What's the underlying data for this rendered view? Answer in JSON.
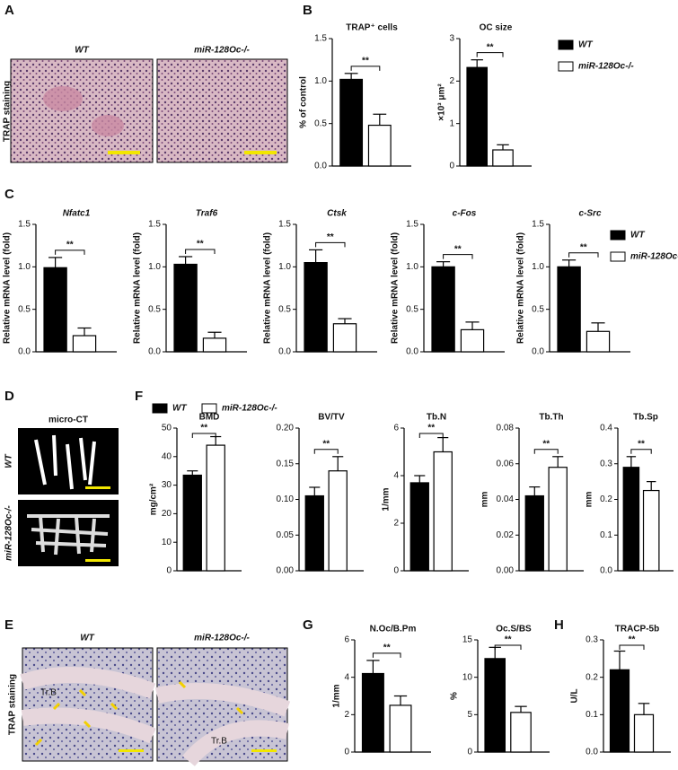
{
  "panel_letters": [
    "A",
    "B",
    "C",
    "D",
    "E",
    "F",
    "G",
    "H"
  ],
  "legend": [
    {
      "name": "WT",
      "color": "#000000"
    },
    {
      "name": "miR-128Oc-/-",
      "color": "#ffffff"
    }
  ],
  "images": {
    "A": {
      "columns": [
        "WT",
        "miR-128Oc-/-"
      ],
      "row_label": "TRAP staining"
    },
    "D": {
      "title": "micro-CT",
      "rows": [
        "WT",
        "miR-128Oc-/-"
      ]
    },
    "E": {
      "columns": [
        "WT",
        "miR-128Oc-/-"
      ],
      "row_label": "TRAP staining",
      "region_labels": [
        "Tr.B",
        "Tr.B"
      ]
    }
  },
  "chart_data": [
    {
      "type": "bar",
      "title": "TRAP⁺ cells",
      "ylabel": "% of control",
      "values": [
        1.02,
        0.48
      ],
      "errors": [
        0.07,
        0.13
      ],
      "ylim": [
        0,
        1.5
      ],
      "yticks": [
        {
          "value": 0,
          "label": "0.0"
        },
        0.5,
        {
          "value": 1,
          "label": "1.0"
        },
        1.5
      ],
      "annotation": "**"
    },
    {
      "type": "bar",
      "title": "OC size",
      "ylabel": "×10³ μm²",
      "values": [
        2.32,
        0.38
      ],
      "errors": [
        0.18,
        0.12
      ],
      "ylim": [
        0,
        3
      ],
      "yticks": [
        0,
        1,
        2,
        3
      ],
      "annotation": "**"
    },
    {
      "type": "bar",
      "title": "Nfatc1",
      "ylabel": "Relative mRNA level (fold)",
      "values": [
        0.99,
        0.19
      ],
      "errors": [
        0.12,
        0.09
      ],
      "ylim": [
        0,
        1.5
      ],
      "yticks": [
        {
          "value": 0,
          "label": "0.0"
        },
        0.5,
        {
          "value": 1,
          "label": "1.0"
        },
        1.5
      ],
      "annotation": "**"
    },
    {
      "type": "bar",
      "title": "Traf6",
      "ylabel": "Relative mRNA level (fold)",
      "values": [
        1.03,
        0.16
      ],
      "errors": [
        0.09,
        0.07
      ],
      "ylim": [
        0,
        1.5
      ],
      "yticks": [
        {
          "value": 0,
          "label": "0.0"
        },
        0.5,
        {
          "value": 1,
          "label": "1.0"
        },
        1.5
      ],
      "annotation": "**"
    },
    {
      "type": "bar",
      "title": "Ctsk",
      "ylabel": "Relative mRNA level (fold)",
      "values": [
        1.05,
        0.33
      ],
      "errors": [
        0.15,
        0.06
      ],
      "ylim": [
        0,
        1.5
      ],
      "yticks": [
        {
          "value": 0,
          "label": "0.0"
        },
        0.5,
        {
          "value": 1,
          "label": "1.0"
        },
        1.5
      ],
      "annotation": "**"
    },
    {
      "type": "bar",
      "title": "c-Fos",
      "ylabel": "Relative mRNA level (fold)",
      "values": [
        1.0,
        0.26
      ],
      "errors": [
        0.06,
        0.09
      ],
      "ylim": [
        0,
        1.5
      ],
      "yticks": [
        {
          "value": 0,
          "label": "0.0"
        },
        0.5,
        {
          "value": 1,
          "label": "1.0"
        },
        1.5
      ],
      "annotation": "**"
    },
    {
      "type": "bar",
      "title": "c-Src",
      "ylabel": "Relative mRNA level (fold)",
      "values": [
        1.0,
        0.24
      ],
      "errors": [
        0.08,
        0.1
      ],
      "ylim": [
        0,
        1.5
      ],
      "yticks": [
        {
          "value": 0,
          "label": "0.0"
        },
        0.5,
        {
          "value": 1,
          "label": "1.0"
        },
        1.5
      ],
      "annotation": "**"
    },
    {
      "type": "bar",
      "title": "BMD",
      "ylabel": "mg/cm²",
      "values": [
        33.5,
        44
      ],
      "errors": [
        1.5,
        3
      ],
      "ylim": [
        0,
        50
      ],
      "yticks": [
        0,
        10,
        20,
        30,
        40,
        50
      ],
      "annotation": "**"
    },
    {
      "type": "bar",
      "title": "BV/TV",
      "ylabel": "",
      "values": [
        0.105,
        0.14
      ],
      "errors": [
        0.012,
        0.02
      ],
      "ylim": [
        0,
        0.2
      ],
      "yticks": [
        {
          "value": 0,
          "label": "0.00"
        },
        0.05,
        {
          "value": 0.1,
          "label": "0.10"
        },
        0.15,
        {
          "value": 0.2,
          "label": "0.20"
        }
      ],
      "annotation": "**"
    },
    {
      "type": "bar",
      "title": "Tb.N",
      "ylabel": "1/mm",
      "values": [
        3.7,
        5.0
      ],
      "errors": [
        0.3,
        0.6
      ],
      "ylim": [
        0,
        6
      ],
      "yticks": [
        0,
        2,
        4,
        6
      ],
      "annotation": "**"
    },
    {
      "type": "bar",
      "title": "Tb.Th",
      "ylabel": "mm",
      "values": [
        0.042,
        0.058
      ],
      "errors": [
        0.005,
        0.006
      ],
      "ylim": [
        0,
        0.08
      ],
      "yticks": [
        {
          "value": 0,
          "label": "0.00"
        },
        0.02,
        0.04,
        0.06,
        0.08
      ],
      "annotation": "**"
    },
    {
      "type": "bar",
      "title": "Tb.Sp",
      "ylabel": "mm",
      "values": [
        0.29,
        0.225
      ],
      "errors": [
        0.03,
        0.025
      ],
      "ylim": [
        0,
        0.4
      ],
      "yticks": [
        {
          "value": 0,
          "label": "0.0"
        },
        0.1,
        0.2,
        0.3,
        0.4
      ],
      "annotation": "**"
    },
    {
      "type": "bar",
      "title": "N.Oc/B.Pm",
      "ylabel": "1/mm",
      "values": [
        4.2,
        2.5
      ],
      "errors": [
        0.7,
        0.5
      ],
      "ylim": [
        0,
        6
      ],
      "yticks": [
        0,
        2,
        4,
        6
      ],
      "annotation": "**"
    },
    {
      "type": "bar",
      "title": "Oc.S/BS",
      "ylabel": "%",
      "values": [
        12.5,
        5.3
      ],
      "errors": [
        1.5,
        0.8
      ],
      "ylim": [
        0,
        15
      ],
      "yticks": [
        0,
        5,
        10,
        15
      ],
      "annotation": "**"
    },
    {
      "type": "bar",
      "title": "TRACP-5b",
      "ylabel": "U/L",
      "values": [
        0.22,
        0.1
      ],
      "errors": [
        0.05,
        0.03
      ],
      "ylim": [
        0,
        0.3
      ],
      "yticks": [
        {
          "value": 0,
          "label": "0.0"
        },
        0.1,
        0.2,
        0.3
      ],
      "annotation": "**"
    }
  ]
}
